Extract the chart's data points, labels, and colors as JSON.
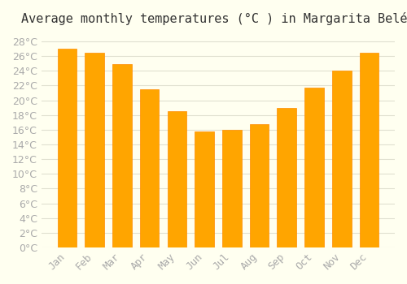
{
  "title": "Average monthly temperatures (°C ) in Margarita Belén",
  "months": [
    "Jan",
    "Feb",
    "Mar",
    "Apr",
    "May",
    "Jun",
    "Jul",
    "Aug",
    "Sep",
    "Oct",
    "Nov",
    "Dec"
  ],
  "values": [
    27.0,
    26.5,
    24.9,
    21.5,
    18.5,
    15.8,
    16.0,
    16.7,
    19.0,
    21.7,
    24.0,
    26.5
  ],
  "bar_color": "#FFA500",
  "bar_edge_color": "#FF8C00",
  "background_color": "#FFFFF0",
  "grid_color": "#E0E0D0",
  "text_color": "#AAAAAA",
  "ylim": [
    0,
    29
  ],
  "yticks": [
    0,
    2,
    4,
    6,
    8,
    10,
    12,
    14,
    16,
    18,
    20,
    22,
    24,
    26,
    28
  ],
  "title_fontsize": 11,
  "tick_fontsize": 9
}
